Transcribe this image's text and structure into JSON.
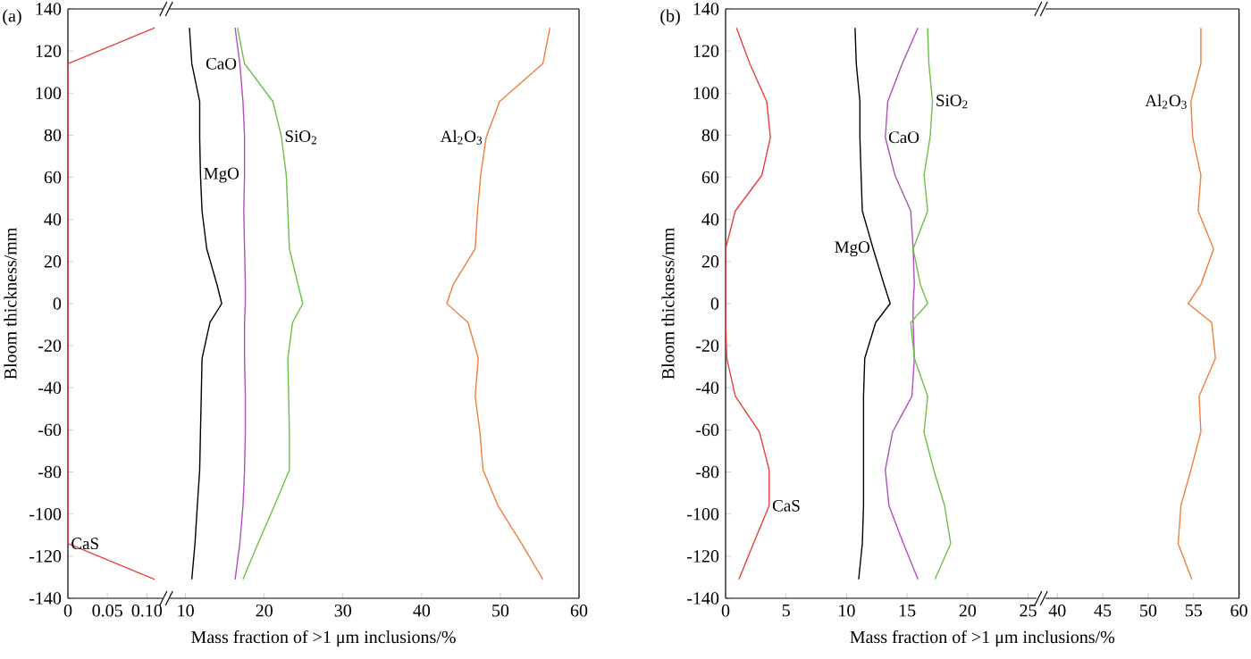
{
  "chart_data": [
    {
      "type": "line",
      "title": "(a)",
      "ylabel": "Bloom thickness/mm",
      "xlabel": "Mass fraction of >1 μm inclusions/%",
      "xlim": [
        0,
        0.12
      ],
      "xticks": [
        0,
        {
          "value": 0.05,
          "label": "0.05"
        },
        {
          "value": 0.1,
          "label": "0.10"
        }
      ],
      "ylim": [
        -140,
        140
      ],
      "yticks": [
        -140,
        -120,
        -100,
        -80,
        -60,
        -40,
        -20,
        0,
        20,
        40,
        60,
        80,
        100,
        120,
        140
      ],
      "series": [
        {
          "name": "CaS",
          "color": "#e8413c",
          "x": [
            0.11,
            0,
            0,
            0.11
          ],
          "values": [
            131,
            114,
            -114,
            -131
          ]
        }
      ]
    },
    {
      "type": "line",
      "xlim": [
        8,
        60
      ],
      "xticks": [
        10,
        20,
        30,
        40,
        50,
        60
      ],
      "ylim": [
        -140,
        140
      ],
      "tick_labels": "x",
      "series": [
        {
          "name": "MgO",
          "color": "#000000",
          "x": [
            10.5,
            10.8,
            11.8,
            11.8,
            11.9,
            12.1,
            12.7,
            14.0,
            14.6,
            13.1,
            12.1,
            12.0,
            11.9,
            11.8,
            11.5,
            11.2,
            10.8
          ],
          "values": [
            131,
            114,
            96,
            79,
            61,
            44,
            26,
            9,
            0,
            -9,
            -26,
            -44,
            -61,
            -79,
            -96,
            -114,
            -131
          ]
        },
        {
          "name": "CaO",
          "color": "#b04fbd",
          "x": [
            16.3,
            16.9,
            17.3,
            17.5,
            17.5,
            17.4,
            17.5,
            17.6,
            17.6,
            17.5,
            17.5,
            17.6,
            17.6,
            17.5,
            17.3,
            16.9,
            16.3
          ],
          "values": [
            131,
            114,
            96,
            79,
            61,
            44,
            26,
            9,
            0,
            -9,
            -26,
            -44,
            -61,
            -79,
            -96,
            -114,
            -131
          ]
        },
        {
          "name": "SiO$_{2}$",
          "color": "#6cc04a",
          "x": [
            16.6,
            17.5,
            21.1,
            22.2,
            22.8,
            23.0,
            23.2,
            24.3,
            24.9,
            23.6,
            23.0,
            23.1,
            23.2,
            23.2,
            21.3,
            19.2,
            17.3
          ],
          "values": [
            131,
            114,
            96,
            79,
            61,
            44,
            26,
            9,
            0,
            -9,
            -26,
            -44,
            -61,
            -79,
            -96,
            -114,
            -131
          ]
        },
        {
          "name": "Al$_{2}$O$_{3}$",
          "color": "#f07f3c",
          "x": [
            56.3,
            55.4,
            49.9,
            48.2,
            47.5,
            47.1,
            46.8,
            44.0,
            43.2,
            45.9,
            47.2,
            46.8,
            47.4,
            47.8,
            49.7,
            52.7,
            55.4
          ],
          "values": [
            131,
            114,
            96,
            79,
            61,
            44,
            26,
            9,
            0,
            -9,
            -26,
            -44,
            -61,
            -79,
            -96,
            -114,
            -131
          ]
        }
      ]
    },
    {
      "type": "line",
      "title": "(b)",
      "ylabel": "Bloom thickness/mm",
      "xlabel": "Mass fraction of >1 μm inclusions/%",
      "xlim": [
        0,
        25.7
      ],
      "xticks": [
        0,
        5,
        10,
        15,
        20,
        25
      ],
      "ylim": [
        -140,
        140
      ],
      "yticks": [
        -140,
        -120,
        -100,
        -80,
        -60,
        -40,
        -20,
        0,
        20,
        40,
        60,
        80,
        100,
        120,
        140
      ],
      "series": [
        {
          "name": "CaS",
          "color": "#e8413c",
          "x": [
            0.9,
            2.0,
            3.4,
            3.7,
            3.0,
            0.8,
            0,
            0,
            0.1,
            0.8,
            2.8,
            3.6,
            3.6,
            2.3,
            1.1
          ],
          "values": [
            131,
            114,
            96,
            79,
            61,
            44,
            26,
            -9,
            -26,
            -44,
            -61,
            -79,
            -96,
            -114,
            -131
          ]
        },
        {
          "name": "MgO",
          "color": "#000000",
          "x": [
            10.7,
            10.8,
            11.1,
            11.1,
            11.2,
            11.3,
            12.2,
            13.1,
            13.6,
            12.4,
            11.5,
            11.4,
            11.4,
            11.3,
            11.0
          ],
          "values": [
            131,
            114,
            96,
            79,
            61,
            44,
            26,
            9,
            0,
            -9,
            -26,
            -44,
            -96,
            -114,
            -131
          ]
        },
        {
          "name": "CaO",
          "color": "#b04fbd",
          "x": [
            15.9,
            14.6,
            13.4,
            13.2,
            14.0,
            15.3,
            15.5,
            15.6,
            15.5,
            15.5,
            15.6,
            15.4,
            13.8,
            13.2,
            13.5,
            14.7,
            15.9
          ],
          "values": [
            131,
            114,
            96,
            79,
            61,
            44,
            26,
            9,
            0,
            -9,
            -26,
            -44,
            -61,
            -79,
            -96,
            -114,
            -131
          ]
        },
        {
          "name": "SiO$_{2}$",
          "color": "#6cc04a",
          "x": [
            16.7,
            16.8,
            17.1,
            16.9,
            16.4,
            16.7,
            15.5,
            16.1,
            16.7,
            15.3,
            15.6,
            16.7,
            16.4,
            17.2,
            18.1,
            18.6,
            17.3
          ],
          "values": [
            131,
            114,
            96,
            79,
            61,
            44,
            26,
            9,
            0,
            -9,
            -26,
            -44,
            -61,
            -79,
            -96,
            -114,
            -131
          ]
        }
      ]
    },
    {
      "type": "line",
      "xlim": [
        38.7,
        60
      ],
      "xticks": [
        40,
        45,
        50,
        55,
        60
      ],
      "ylim": [
        -140,
        140
      ],
      "tick_labels": "x",
      "series": [
        {
          "name": "Al$_{2}$O$_{3}$",
          "color": "#f07f3c",
          "x": [
            55.8,
            55.8,
            54.7,
            54.9,
            55.8,
            55.5,
            57.2,
            55.8,
            54.4,
            57.0,
            57.4,
            55.6,
            55.8,
            54.7,
            53.6,
            53.3,
            54.8
          ],
          "values": [
            131,
            114,
            96,
            79,
            61,
            44,
            26,
            9,
            0,
            -9,
            -26,
            -44,
            -61,
            -79,
            -96,
            -114,
            -131
          ]
        }
      ]
    }
  ]
}
